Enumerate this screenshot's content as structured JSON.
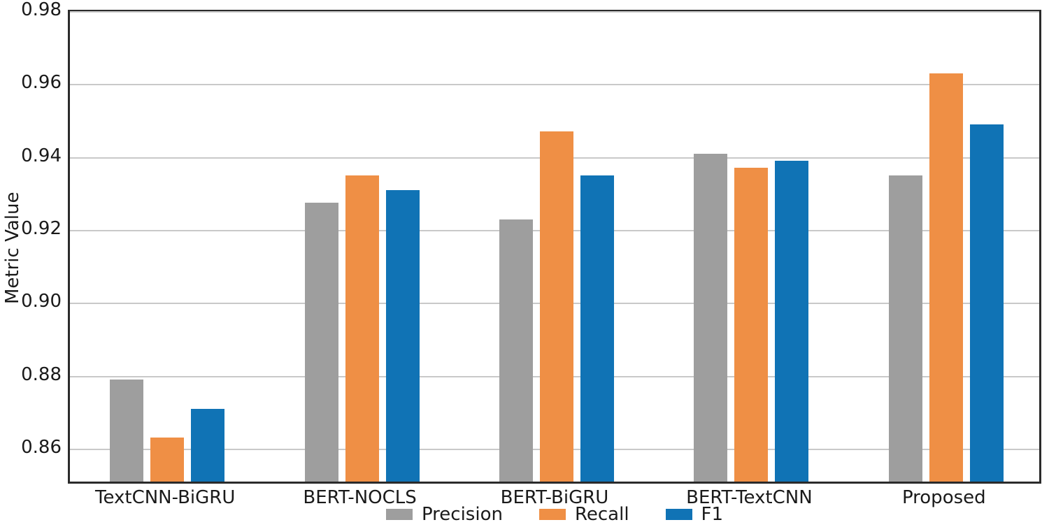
{
  "chart_data": {
    "type": "bar",
    "title": "",
    "xlabel": "",
    "ylabel": "Metric Value",
    "categories": [
      "TextCNN-BiGRU",
      "BERT-NOCLS",
      "BERT-BiGRU",
      "BERT-TextCNN",
      "Proposed"
    ],
    "series": [
      {
        "name": "Precision",
        "color": "#9e9e9e",
        "values": [
          0.878,
          0.9265,
          0.922,
          0.94,
          0.934
        ]
      },
      {
        "name": "Recall",
        "color": "#ef8f45",
        "values": [
          0.862,
          0.934,
          0.946,
          0.936,
          0.962
        ]
      },
      {
        "name": "F1",
        "color": "#1073b5",
        "values": [
          0.87,
          0.93,
          0.934,
          0.938,
          0.948
        ]
      }
    ],
    "ylim": [
      0.85,
      0.98
    ],
    "yticks": [
      0.86,
      0.88,
      0.9,
      0.92,
      0.94,
      0.96,
      0.98
    ],
    "ytick_format_decimals": 2,
    "grid": "horizontal",
    "legend_position": "bottom-center",
    "legend_labels": [
      "Precision",
      "Recall",
      "F1"
    ]
  },
  "colors": {
    "grid": "#c9c9c9",
    "spine": "#2b2b2b",
    "text": "#1a1a1a",
    "background": "#ffffff"
  }
}
